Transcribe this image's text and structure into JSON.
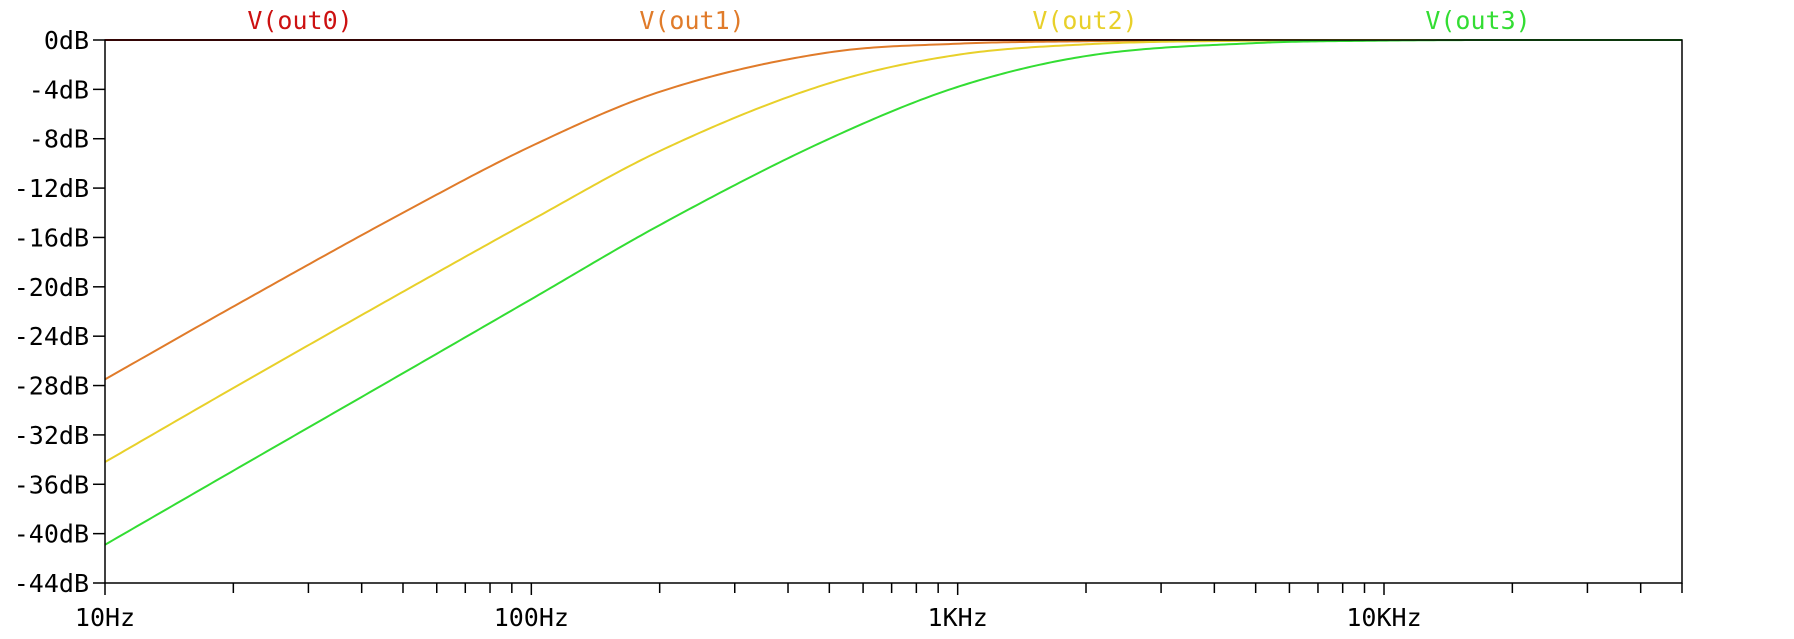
{
  "chart_data": {
    "type": "line",
    "x_scale": "log",
    "x_unit": "Hz",
    "xlim": [
      10,
      50000
    ],
    "ylim": [
      -44,
      0
    ],
    "y_ticks": [
      0,
      -4,
      -8,
      -12,
      -16,
      -20,
      -24,
      -28,
      -32,
      -36,
      -40,
      -44
    ],
    "y_tick_labels": [
      "0dB",
      "-4dB",
      "-8dB",
      "-12dB",
      "-16dB",
      "-20dB",
      "-24dB",
      "-28dB",
      "-32dB",
      "-36dB",
      "-40dB",
      "-44dB"
    ],
    "x_major_ticks": [
      10,
      100,
      1000,
      10000
    ],
    "x_tick_labels": [
      "10Hz",
      "100Hz",
      "1KHz",
      "10KHz"
    ],
    "grid": false,
    "legend_position": "top",
    "series": [
      {
        "name": "V(out0)",
        "color": "#cc1111",
        "x": [
          10,
          20,
          50,
          100,
          200,
          500,
          1000,
          2000,
          5000,
          10000,
          20000,
          50000
        ],
        "y": [
          0,
          0,
          0,
          0,
          0,
          0,
          0,
          0,
          0,
          0,
          0,
          0
        ]
      },
      {
        "name": "V(out1)",
        "color": "#e07b2a",
        "x": [
          10,
          20,
          50,
          100,
          200,
          500,
          1000,
          2000,
          5000,
          10000,
          20000,
          50000
        ],
        "y": [
          -27.5,
          -21.6,
          -14.0,
          -8.6,
          -4.2,
          -1.0,
          -0.3,
          -0.1,
          0,
          0,
          0,
          0
        ]
      },
      {
        "name": "V(out2)",
        "color": "#e8d02a",
        "x": [
          10,
          20,
          50,
          100,
          200,
          500,
          1000,
          2000,
          5000,
          10000,
          20000,
          50000
        ],
        "y": [
          -34.2,
          -28.2,
          -20.4,
          -14.6,
          -9.0,
          -3.5,
          -1.2,
          -0.35,
          -0.05,
          0,
          0,
          0
        ]
      },
      {
        "name": "V(out3)",
        "color": "#33dd33",
        "x": [
          10,
          20,
          50,
          100,
          200,
          500,
          1000,
          2000,
          5000,
          10000,
          20000,
          50000
        ],
        "y": [
          -40.9,
          -34.9,
          -27.0,
          -21.0,
          -15.0,
          -8.0,
          -3.8,
          -1.3,
          -0.25,
          -0.05,
          0,
          0
        ]
      }
    ]
  }
}
